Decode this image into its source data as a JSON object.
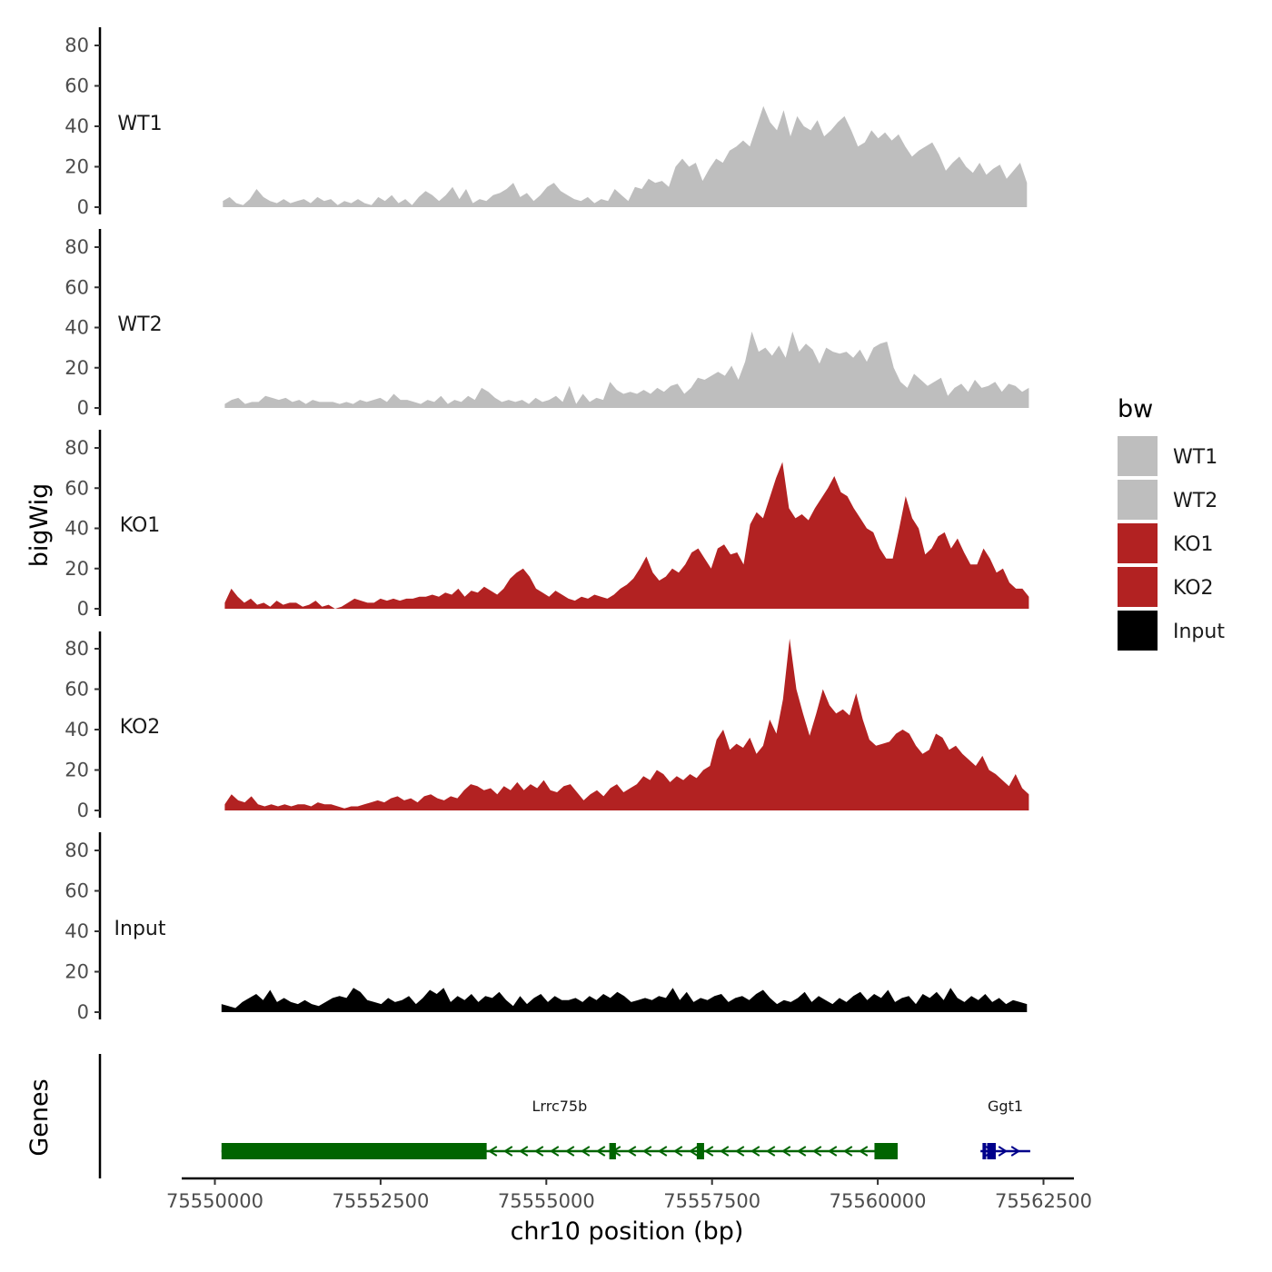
{
  "chart_data": {
    "type": "area",
    "title": "",
    "ylabel": "bigWig",
    "genes_label": "Genes",
    "xlabel": "chr10 position (bp)",
    "xlim": [
      75549500,
      75562600
    ],
    "ylim": [
      0,
      85
    ],
    "y_ticks": [
      0,
      20,
      40,
      60,
      80
    ],
    "x_ticks": [
      75550000,
      75552500,
      75555000,
      75557500,
      75560000,
      75562500
    ],
    "x_tick_labels": [
      "75550000",
      "75552500",
      "75555000",
      "75557500",
      "75560000",
      "75562500"
    ],
    "tracks": [
      {
        "name": "WT1",
        "color": "#bebebe",
        "x_start": 75550120,
        "x_end": 75562250,
        "values": [
          3,
          5,
          2,
          1,
          4,
          9,
          5,
          3,
          2,
          4,
          2,
          3,
          4,
          2,
          5,
          3,
          4,
          1,
          3,
          2,
          4,
          2,
          1,
          5,
          3,
          6,
          2,
          4,
          1,
          5,
          8,
          6,
          3,
          6,
          10,
          4,
          9,
          2,
          4,
          3,
          6,
          7,
          9,
          12,
          5,
          7,
          3,
          6,
          10,
          12,
          8,
          6,
          4,
          3,
          5,
          2,
          4,
          3,
          9,
          6,
          3,
          10,
          9,
          14,
          12,
          13,
          10,
          20,
          24,
          20,
          22,
          13,
          19,
          24,
          22,
          28,
          30,
          33,
          30,
          40,
          50,
          42,
          38,
          48,
          35,
          45,
          40,
          38,
          43,
          35,
          38,
          42,
          45,
          38,
          30,
          32,
          38,
          34,
          37,
          33,
          36,
          30,
          25,
          28,
          30,
          32,
          26,
          18,
          22,
          25,
          20,
          17,
          22,
          16,
          19,
          21,
          14,
          18,
          22,
          12
        ]
      },
      {
        "name": "WT2",
        "color": "#bebebe",
        "x_start": 75550150,
        "x_end": 75562280,
        "values": [
          2,
          4,
          5,
          2,
          3,
          3,
          6,
          5,
          4,
          5,
          3,
          4,
          2,
          4,
          3,
          3,
          3,
          2,
          3,
          2,
          4,
          3,
          4,
          5,
          3,
          7,
          4,
          4,
          3,
          2,
          4,
          3,
          6,
          2,
          4,
          3,
          6,
          4,
          10,
          8,
          5,
          3,
          4,
          3,
          4,
          2,
          5,
          3,
          4,
          6,
          3,
          11,
          2,
          7,
          3,
          5,
          4,
          13,
          9,
          7,
          8,
          7,
          9,
          7,
          10,
          8,
          11,
          12,
          7,
          10,
          15,
          14,
          16,
          18,
          16,
          21,
          14,
          23,
          38,
          28,
          30,
          26,
          31,
          25,
          38,
          28,
          32,
          29,
          22,
          30,
          28,
          27,
          28,
          25,
          29,
          23,
          30,
          32,
          33,
          20,
          13,
          10,
          17,
          14,
          11,
          13,
          15,
          6,
          10,
          12,
          8,
          14,
          10,
          11,
          13,
          8,
          12,
          11,
          8,
          10
        ]
      },
      {
        "name": "KO1",
        "color": "#b22222",
        "x_start": 75550150,
        "x_end": 75562280,
        "values": [
          3,
          10,
          6,
          3,
          5,
          2,
          3,
          1,
          4,
          2,
          3,
          3,
          1,
          2,
          4,
          1,
          2,
          0,
          1,
          3,
          5,
          4,
          3,
          3,
          5,
          4,
          5,
          4,
          5,
          5,
          6,
          6,
          7,
          6,
          8,
          7,
          10,
          6,
          9,
          8,
          11,
          9,
          7,
          10,
          15,
          18,
          20,
          16,
          10,
          8,
          6,
          9,
          7,
          5,
          4,
          6,
          5,
          7,
          6,
          5,
          7,
          10,
          12,
          15,
          20,
          26,
          18,
          14,
          16,
          20,
          18,
          22,
          28,
          30,
          25,
          20,
          30,
          32,
          27,
          28,
          22,
          42,
          48,
          45,
          55,
          65,
          73,
          50,
          45,
          47,
          44,
          50,
          55,
          60,
          66,
          58,
          56,
          50,
          45,
          40,
          38,
          30,
          25,
          25,
          40,
          56,
          45,
          40,
          27,
          30,
          36,
          38,
          30,
          35,
          28,
          22,
          22,
          30,
          25,
          18,
          20,
          13,
          10,
          10,
          6
        ]
      },
      {
        "name": "KO2",
        "color": "#b22222",
        "x_start": 75550150,
        "x_end": 75562280,
        "values": [
          3,
          8,
          5,
          4,
          7,
          3,
          2,
          3,
          2,
          3,
          2,
          3,
          3,
          2,
          4,
          3,
          3,
          2,
          1,
          2,
          2,
          3,
          4,
          5,
          4,
          6,
          7,
          5,
          6,
          4,
          7,
          8,
          6,
          5,
          7,
          6,
          10,
          13,
          12,
          10,
          11,
          8,
          12,
          10,
          14,
          10,
          13,
          11,
          15,
          10,
          9,
          12,
          13,
          9,
          5,
          8,
          10,
          7,
          11,
          13,
          9,
          11,
          13,
          17,
          15,
          20,
          18,
          14,
          17,
          15,
          18,
          16,
          20,
          22,
          35,
          40,
          30,
          33,
          31,
          36,
          28,
          32,
          45,
          38,
          55,
          85,
          60,
          48,
          37,
          48,
          60,
          52,
          48,
          50,
          47,
          58,
          45,
          35,
          32,
          33,
          34,
          38,
          40,
          38,
          32,
          28,
          30,
          38,
          36,
          30,
          32,
          28,
          25,
          22,
          27,
          20,
          18,
          15,
          12,
          18,
          11,
          8
        ]
      },
      {
        "name": "Input",
        "color": "#000000",
        "x_start": 75550100,
        "x_end": 75562250,
        "values": [
          4,
          3,
          2,
          5,
          7,
          9,
          6,
          11,
          5,
          7,
          5,
          4,
          6,
          4,
          3,
          5,
          7,
          8,
          7,
          12,
          10,
          6,
          5,
          4,
          7,
          5,
          6,
          8,
          4,
          7,
          11,
          9,
          12,
          5,
          8,
          6,
          9,
          5,
          8,
          7,
          10,
          6,
          3,
          8,
          4,
          7,
          9,
          5,
          8,
          6,
          6,
          7,
          5,
          8,
          6,
          9,
          7,
          10,
          8,
          5,
          6,
          7,
          6,
          8,
          7,
          12,
          6,
          10,
          5,
          7,
          6,
          8,
          9,
          5,
          7,
          8,
          6,
          9,
          11,
          7,
          4,
          6,
          5,
          7,
          10,
          5,
          8,
          6,
          4,
          7,
          5,
          8,
          10,
          6,
          9,
          7,
          11,
          5,
          7,
          8,
          4,
          9,
          7,
          10,
          6,
          12,
          7,
          5,
          8,
          6,
          9,
          5,
          7,
          4,
          6,
          5,
          4
        ]
      }
    ],
    "genes": [
      {
        "name": "Lrrc75b",
        "color": "#006400",
        "strand": "-",
        "start": 75550100,
        "end": 75560300,
        "exons": [
          [
            75550100,
            75554100
          ],
          [
            75555950,
            75556050
          ],
          [
            75557270,
            75557380
          ],
          [
            75559950,
            75560300
          ]
        ]
      },
      {
        "name": "Ggt1",
        "color": "#00008b",
        "strand": "+",
        "start": 75561550,
        "end": 75562300,
        "exons": [
          [
            75561580,
            75561620
          ],
          [
            75561650,
            75561780
          ]
        ]
      }
    ],
    "legend": {
      "title": "bw",
      "position": "right",
      "items": [
        {
          "label": "WT1",
          "color": "#bebebe"
        },
        {
          "label": "WT2",
          "color": "#bebebe"
        },
        {
          "label": "KO1",
          "color": "#b22222"
        },
        {
          "label": "KO2",
          "color": "#b22222"
        },
        {
          "label": "Input",
          "color": "#000000"
        }
      ]
    }
  }
}
